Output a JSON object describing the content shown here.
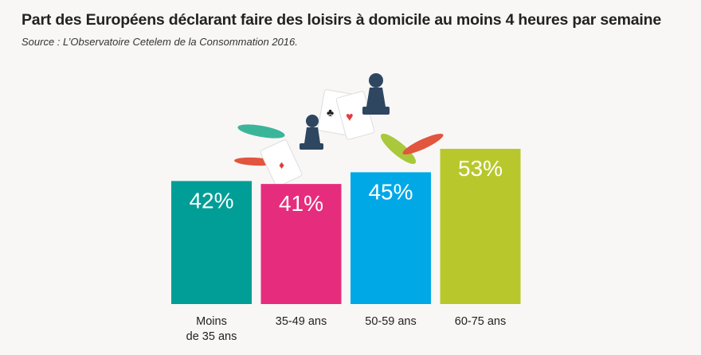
{
  "header": {
    "title": "Part des Européens déclarant faire des loisirs à domicile au moins 4 heures par semaine",
    "subtitle": "Source : L’Observatoire Cetelem de la Consommation 2016."
  },
  "chart_data": {
    "type": "bar",
    "title": "Part des Européens déclarant faire des loisirs à domicile au moins 4 heures par semaine",
    "categories": [
      [
        "Moins",
        "de 35 ans"
      ],
      [
        "35-49 ans"
      ],
      [
        "50-59 ans"
      ],
      [
        "60-75 ans"
      ]
    ],
    "values": [
      42,
      41,
      45,
      53
    ],
    "value_labels": [
      "42%",
      "41%",
      "45%",
      "53%"
    ],
    "colors": [
      "#009e96",
      "#e62d7d",
      "#00a8e6",
      "#b8c82c"
    ],
    "xlabel": "",
    "ylabel": "",
    "ylim": [
      0,
      60
    ],
    "grid": false
  }
}
